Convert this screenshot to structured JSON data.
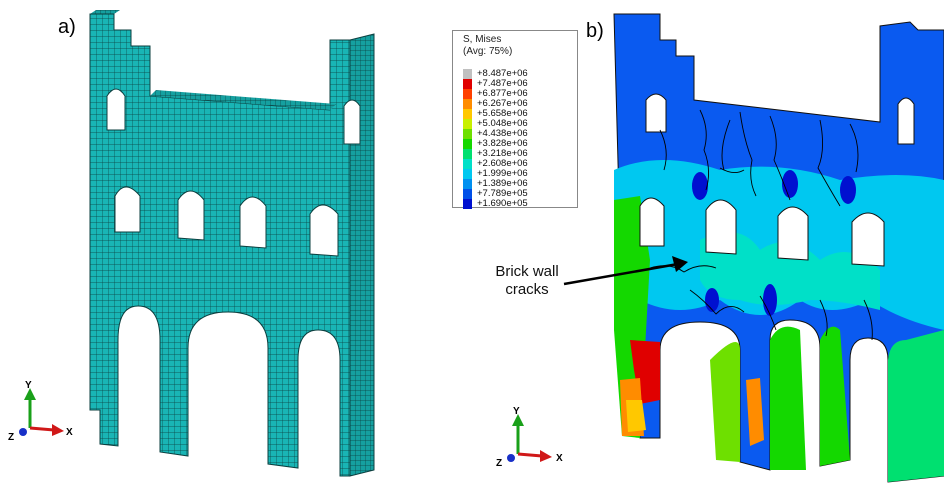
{
  "panels": {
    "a_label": "a)",
    "b_label": "b)"
  },
  "legend": {
    "title_line1": "S, Mises",
    "title_line2": "(Avg: 75%)",
    "entries": [
      {
        "value": "+8.487e+06",
        "color": "#c0c0c0"
      },
      {
        "value": "+7.487e+06",
        "color": "#e00000"
      },
      {
        "value": "+6.877e+06",
        "color": "#ff4000"
      },
      {
        "value": "+6.267e+06",
        "color": "#ff8c00"
      },
      {
        "value": "+5.658e+06",
        "color": "#ffc800"
      },
      {
        "value": "+5.048e+06",
        "color": "#c8f000"
      },
      {
        "value": "+4.438e+06",
        "color": "#6ee000"
      },
      {
        "value": "+3.828e+06",
        "color": "#14d800"
      },
      {
        "value": "+3.218e+06",
        "color": "#00e070"
      },
      {
        "value": "+2.608e+06",
        "color": "#00e0c8"
      },
      {
        "value": "+1.999e+06",
        "color": "#00c8f0"
      },
      {
        "value": "+1.389e+06",
        "color": "#0090f0"
      },
      {
        "value": "+7.789e+05",
        "color": "#0050e8"
      },
      {
        "value": "+1.690e+05",
        "color": "#0010d0"
      }
    ]
  },
  "annotation": {
    "line1": "Brick wall",
    "line2": "cracks"
  },
  "triad_a": {
    "y": "Y",
    "x": "X",
    "z": "Z"
  },
  "triad_b": {
    "y": "Y",
    "x": "X",
    "z": "Z"
  },
  "colors": {
    "mesh_fill": "#19b5b5",
    "mesh_line": "#0b3f3f",
    "contour_base": "#0a5af0"
  }
}
